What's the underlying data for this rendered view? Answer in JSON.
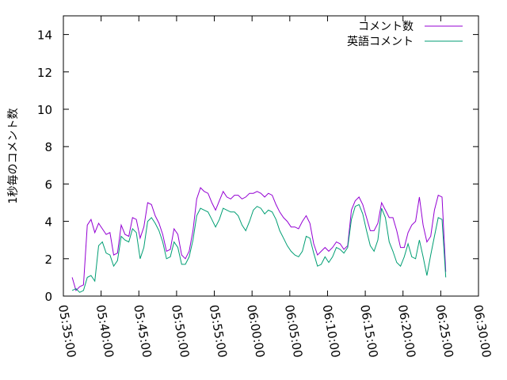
{
  "chart_data": {
    "type": "line",
    "title": "",
    "xlabel": "",
    "ylabel": "1秒毎のコメント数",
    "ylim": [
      0,
      15
    ],
    "yticks": [
      0,
      2,
      4,
      6,
      8,
      10,
      12,
      14
    ],
    "xlim": [
      "05:35:00",
      "06:30:00"
    ],
    "xticks": [
      "05:35:00",
      "05:40:00",
      "05:45:00",
      "05:50:00",
      "05:55:00",
      "06:00:00",
      "06:05:00",
      "06:10:00",
      "06:15:00",
      "06:20:00",
      "06:25:00",
      "06:30:00"
    ],
    "grid": false,
    "legend_position": "top-right",
    "series": [
      {
        "name": "コメント数",
        "color": "#9400d3",
        "points": [
          [
            "05:36:10",
            1.0
          ],
          [
            "05:36:40",
            0.3
          ],
          [
            "05:37:10",
            0.5
          ],
          [
            "05:37:40",
            0.6
          ],
          [
            "05:38:10",
            3.8
          ],
          [
            "05:38:40",
            4.1
          ],
          [
            "05:39:10",
            3.4
          ],
          [
            "05:39:40",
            3.9
          ],
          [
            "05:40:10",
            3.6
          ],
          [
            "05:40:40",
            3.3
          ],
          [
            "05:41:10",
            3.4
          ],
          [
            "05:41:40",
            2.2
          ],
          [
            "05:42:10",
            2.3
          ],
          [
            "05:42:40",
            3.8
          ],
          [
            "05:43:10",
            3.3
          ],
          [
            "05:43:40",
            3.2
          ],
          [
            "05:44:10",
            4.2
          ],
          [
            "05:44:40",
            4.1
          ],
          [
            "05:45:10",
            3.1
          ],
          [
            "05:45:40",
            3.7
          ],
          [
            "05:46:10",
            5.0
          ],
          [
            "05:46:40",
            4.9
          ],
          [
            "05:47:10",
            4.3
          ],
          [
            "05:47:40",
            3.9
          ],
          [
            "05:48:10",
            3.3
          ],
          [
            "05:48:40",
            2.4
          ],
          [
            "05:49:10",
            2.5
          ],
          [
            "05:49:40",
            3.6
          ],
          [
            "05:50:10",
            3.3
          ],
          [
            "05:50:40",
            2.2
          ],
          [
            "05:51:10",
            2.0
          ],
          [
            "05:51:40",
            2.4
          ],
          [
            "05:52:10",
            3.5
          ],
          [
            "05:52:40",
            5.2
          ],
          [
            "05:53:10",
            5.8
          ],
          [
            "05:53:40",
            5.6
          ],
          [
            "05:54:10",
            5.5
          ],
          [
            "05:54:40",
            5.0
          ],
          [
            "05:55:10",
            4.6
          ],
          [
            "05:55:40",
            5.1
          ],
          [
            "05:56:10",
            5.6
          ],
          [
            "05:56:40",
            5.3
          ],
          [
            "05:57:10",
            5.2
          ],
          [
            "05:57:40",
            5.4
          ],
          [
            "05:58:10",
            5.4
          ],
          [
            "05:58:40",
            5.2
          ],
          [
            "05:59:10",
            5.3
          ],
          [
            "05:59:40",
            5.5
          ],
          [
            "06:00:10",
            5.5
          ],
          [
            "06:00:40",
            5.6
          ],
          [
            "06:01:10",
            5.5
          ],
          [
            "06:01:40",
            5.3
          ],
          [
            "06:02:10",
            5.5
          ],
          [
            "06:02:40",
            5.4
          ],
          [
            "06:03:10",
            4.9
          ],
          [
            "06:03:40",
            4.5
          ],
          [
            "06:04:10",
            4.2
          ],
          [
            "06:04:40",
            4.0
          ],
          [
            "06:05:10",
            3.7
          ],
          [
            "06:05:40",
            3.7
          ],
          [
            "06:06:10",
            3.6
          ],
          [
            "06:06:40",
            4.0
          ],
          [
            "06:07:10",
            4.3
          ],
          [
            "06:07:40",
            3.9
          ],
          [
            "06:08:10",
            2.8
          ],
          [
            "06:08:40",
            2.2
          ],
          [
            "06:09:10",
            2.4
          ],
          [
            "06:09:40",
            2.6
          ],
          [
            "06:10:10",
            2.4
          ],
          [
            "06:10:40",
            2.6
          ],
          [
            "06:11:10",
            2.9
          ],
          [
            "06:11:40",
            2.8
          ],
          [
            "06:12:10",
            2.5
          ],
          [
            "06:12:40",
            2.7
          ],
          [
            "06:13:10",
            4.6
          ],
          [
            "06:13:40",
            5.1
          ],
          [
            "06:14:10",
            5.3
          ],
          [
            "06:14:40",
            4.9
          ],
          [
            "06:15:10",
            4.2
          ],
          [
            "06:15:40",
            3.5
          ],
          [
            "06:16:10",
            3.5
          ],
          [
            "06:16:40",
            3.9
          ],
          [
            "06:17:10",
            5.0
          ],
          [
            "06:17:40",
            4.6
          ],
          [
            "06:18:10",
            4.2
          ],
          [
            "06:18:40",
            4.2
          ],
          [
            "06:19:10",
            3.5
          ],
          [
            "06:19:40",
            2.6
          ],
          [
            "06:20:10",
            2.6
          ],
          [
            "06:20:40",
            3.4
          ],
          [
            "06:21:10",
            3.8
          ],
          [
            "06:21:40",
            4.0
          ],
          [
            "06:22:10",
            5.3
          ],
          [
            "06:22:40",
            3.8
          ],
          [
            "06:23:10",
            2.9
          ],
          [
            "06:23:40",
            3.2
          ],
          [
            "06:24:10",
            4.6
          ],
          [
            "06:24:40",
            5.4
          ],
          [
            "06:25:10",
            5.3
          ],
          [
            "06:25:40",
            1.3
          ]
        ]
      },
      {
        "name": "英語コメント",
        "color": "#009e73",
        "points": [
          [
            "05:36:10",
            0.3
          ],
          [
            "05:36:40",
            0.4
          ],
          [
            "05:37:10",
            0.2
          ],
          [
            "05:37:40",
            0.3
          ],
          [
            "05:38:10",
            1.0
          ],
          [
            "05:38:40",
            1.1
          ],
          [
            "05:39:10",
            0.8
          ],
          [
            "05:39:40",
            2.7
          ],
          [
            "05:40:10",
            2.9
          ],
          [
            "05:40:40",
            2.3
          ],
          [
            "05:41:10",
            2.2
          ],
          [
            "05:41:40",
            1.6
          ],
          [
            "05:42:10",
            1.9
          ],
          [
            "05:42:40",
            3.2
          ],
          [
            "05:43:10",
            3.0
          ],
          [
            "05:43:40",
            2.9
          ],
          [
            "05:44:10",
            3.6
          ],
          [
            "05:44:40",
            3.4
          ],
          [
            "05:45:10",
            2.0
          ],
          [
            "05:45:40",
            2.6
          ],
          [
            "05:46:10",
            4.0
          ],
          [
            "05:46:40",
            4.2
          ],
          [
            "05:47:10",
            3.9
          ],
          [
            "05:47:40",
            3.5
          ],
          [
            "05:48:10",
            2.9
          ],
          [
            "05:48:40",
            2.0
          ],
          [
            "05:49:10",
            2.1
          ],
          [
            "05:49:40",
            2.9
          ],
          [
            "05:50:10",
            2.6
          ],
          [
            "05:50:40",
            1.7
          ],
          [
            "05:51:10",
            1.7
          ],
          [
            "05:51:40",
            2.1
          ],
          [
            "05:52:10",
            3.0
          ],
          [
            "05:52:40",
            4.3
          ],
          [
            "05:53:10",
            4.7
          ],
          [
            "05:53:40",
            4.6
          ],
          [
            "05:54:10",
            4.5
          ],
          [
            "05:54:40",
            4.1
          ],
          [
            "05:55:10",
            3.7
          ],
          [
            "05:55:40",
            4.1
          ],
          [
            "05:56:10",
            4.7
          ],
          [
            "05:56:40",
            4.6
          ],
          [
            "05:57:10",
            4.5
          ],
          [
            "05:57:40",
            4.5
          ],
          [
            "05:58:10",
            4.3
          ],
          [
            "05:58:40",
            3.8
          ],
          [
            "05:59:10",
            3.5
          ],
          [
            "05:59:40",
            4.0
          ],
          [
            "06:00:10",
            4.6
          ],
          [
            "06:00:40",
            4.8
          ],
          [
            "06:01:10",
            4.7
          ],
          [
            "06:01:40",
            4.4
          ],
          [
            "06:02:10",
            4.6
          ],
          [
            "06:02:40",
            4.5
          ],
          [
            "06:03:10",
            4.1
          ],
          [
            "06:03:40",
            3.5
          ],
          [
            "06:04:10",
            3.1
          ],
          [
            "06:04:40",
            2.7
          ],
          [
            "06:05:10",
            2.4
          ],
          [
            "06:05:40",
            2.2
          ],
          [
            "06:06:10",
            2.1
          ],
          [
            "06:06:40",
            2.4
          ],
          [
            "06:07:10",
            3.2
          ],
          [
            "06:07:40",
            3.1
          ],
          [
            "06:08:10",
            2.3
          ],
          [
            "06:08:40",
            1.6
          ],
          [
            "06:09:10",
            1.7
          ],
          [
            "06:09:40",
            2.1
          ],
          [
            "06:10:10",
            1.8
          ],
          [
            "06:10:40",
            2.1
          ],
          [
            "06:11:10",
            2.6
          ],
          [
            "06:11:40",
            2.5
          ],
          [
            "06:12:10",
            2.3
          ],
          [
            "06:12:40",
            2.6
          ],
          [
            "06:13:10",
            4.1
          ],
          [
            "06:13:40",
            4.8
          ],
          [
            "06:14:10",
            4.9
          ],
          [
            "06:14:40",
            4.4
          ],
          [
            "06:15:10",
            3.5
          ],
          [
            "06:15:40",
            2.7
          ],
          [
            "06:16:10",
            2.4
          ],
          [
            "06:16:40",
            3.0
          ],
          [
            "06:17:10",
            4.7
          ],
          [
            "06:17:40",
            4.2
          ],
          [
            "06:18:10",
            2.9
          ],
          [
            "06:18:40",
            2.4
          ],
          [
            "06:19:10",
            1.8
          ],
          [
            "06:19:40",
            1.6
          ],
          [
            "06:20:10",
            2.1
          ],
          [
            "06:20:40",
            2.8
          ],
          [
            "06:21:10",
            2.1
          ],
          [
            "06:21:40",
            2.0
          ],
          [
            "06:22:10",
            3.0
          ],
          [
            "06:22:40",
            2.1
          ],
          [
            "06:23:10",
            1.1
          ],
          [
            "06:23:40",
            2.2
          ],
          [
            "06:24:10",
            3.2
          ],
          [
            "06:24:40",
            4.2
          ],
          [
            "06:25:10",
            4.1
          ],
          [
            "06:25:40",
            1.0
          ]
        ]
      }
    ]
  }
}
